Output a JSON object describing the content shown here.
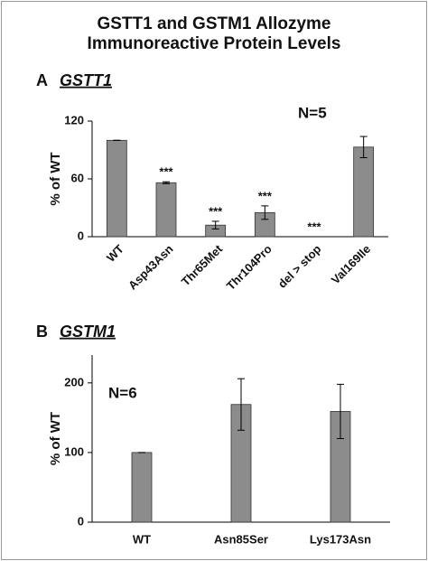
{
  "title": "GSTT1 and GSTM1 Allozyme Immunoreactive Protein Levels",
  "chart_data": [
    {
      "type": "bar",
      "panel": "A",
      "title": "GSTT1",
      "annotation": "N=5",
      "ylabel": "% of WT",
      "categories": [
        "WT",
        "Asp43Asn",
        "Thr65Met",
        "Thr104Pro",
        "del > stop",
        "Val169Ile"
      ],
      "values": [
        100,
        56,
        12,
        25,
        0,
        93
      ],
      "errors": [
        0,
        1,
        4,
        7,
        0,
        11
      ],
      "significance": [
        null,
        "***",
        "***",
        "***",
        "***",
        null
      ],
      "color": "#8c8c8c",
      "ylim": [
        0,
        120
      ],
      "yticks": [
        0,
        60,
        120
      ],
      "grid": false
    },
    {
      "type": "bar",
      "panel": "B",
      "title": "GSTM1",
      "annotation": "N=6",
      "ylabel": "% of WT",
      "categories": [
        "WT",
        "Asn85Ser",
        "Lys173Asn"
      ],
      "values": [
        100,
        169,
        159
      ],
      "errors": [
        0,
        37,
        39
      ],
      "color": "#8c8c8c",
      "ylim": [
        0,
        240
      ],
      "yticks": [
        0,
        100,
        200
      ],
      "grid": false
    }
  ]
}
